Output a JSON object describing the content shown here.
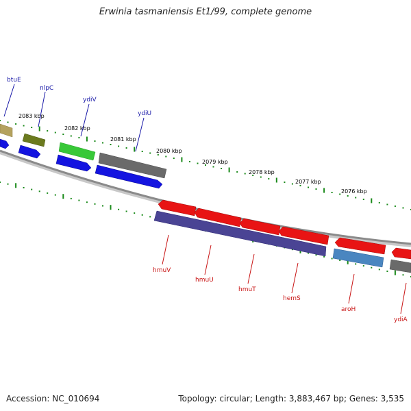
{
  "title": "Erwinia tasmaniensis Et1/99, complete genome",
  "footer": {
    "accession": "Accession: NC_010694",
    "summary": "Topology: circular; Length: 3,883,467 bp; Genes: 3,535"
  },
  "ruler": {
    "unit": "kbp",
    "ticks": [
      "2083 kbp",
      "2082 kbp",
      "2081 kbp",
      "2080 kbp",
      "2079 kbp",
      "2078 kbp",
      "2077 kbp",
      "2076 kbp"
    ]
  },
  "colors": {
    "backbone": "#8a8a8a",
    "tick": "#1a8a1a",
    "label_forward": "#1a1aa8",
    "label_reverse": "#c81414",
    "blue_cds": "#1414e0",
    "red_cds": "#e81414",
    "navy_cds": "#4a4494",
    "gray_cds": "#6a6a6a",
    "green_cds": "#38c838",
    "olive_cds": "#6b7a1e",
    "khaki_cds": "#b4a25e",
    "steel_cds": "#4a86c0"
  },
  "genes": {
    "forward": [
      "btuE",
      "nlpC",
      "ydiV",
      "ydiU"
    ],
    "reverse": [
      "hmuV",
      "hmuU",
      "hmuT",
      "hemS",
      "aroH",
      "ydiA"
    ]
  }
}
